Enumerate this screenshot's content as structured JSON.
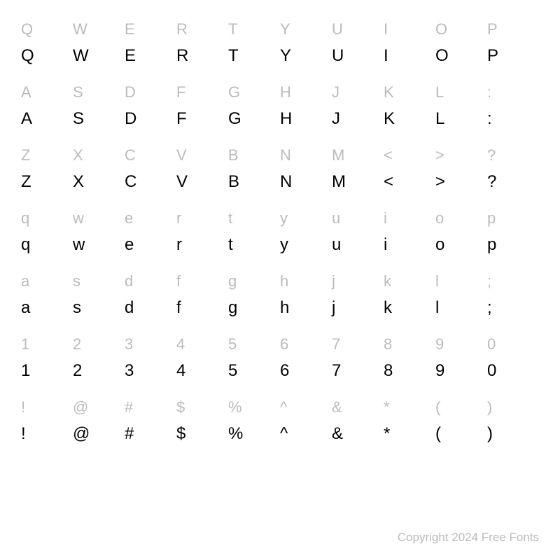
{
  "grid": {
    "type": "table",
    "columns": 10,
    "rows": [
      {
        "labels": [
          "Q",
          "W",
          "E",
          "R",
          "T",
          "Y",
          "U",
          "I",
          "O",
          "P"
        ],
        "specimens": [
          "Q",
          "W",
          "E",
          "R",
          "T",
          "Y",
          "U",
          "I",
          "O",
          "P"
        ]
      },
      {
        "labels": [
          "A",
          "S",
          "D",
          "F",
          "G",
          "H",
          "J",
          "K",
          "L",
          ":"
        ],
        "specimens": [
          "A",
          "S",
          "D",
          "F",
          "G",
          "H",
          "J",
          "K",
          "L",
          ":"
        ]
      },
      {
        "labels": [
          "Z",
          "X",
          "C",
          "V",
          "B",
          "N",
          "M",
          "<",
          ">",
          "?"
        ],
        "specimens": [
          "Z",
          "X",
          "C",
          "V",
          "B",
          "N",
          "M",
          "<",
          ">",
          "?"
        ]
      },
      {
        "labels": [
          "q",
          "w",
          "e",
          "r",
          "t",
          "y",
          "u",
          "i",
          "o",
          "p"
        ],
        "specimens": [
          "q",
          "w",
          "e",
          "r",
          "t",
          "y",
          "u",
          "i",
          "o",
          "p"
        ]
      },
      {
        "labels": [
          "a",
          "s",
          "d",
          "f",
          "g",
          "h",
          "j",
          "k",
          "l",
          ";"
        ],
        "specimens": [
          "a",
          "s",
          "d",
          "f",
          "g",
          "h",
          "j",
          "k",
          "l",
          ";"
        ]
      },
      {
        "labels": [
          "1",
          "2",
          "3",
          "4",
          "5",
          "6",
          "7",
          "8",
          "9",
          "0"
        ],
        "specimens": [
          "1",
          "2",
          "3",
          "4",
          "5",
          "6",
          "7",
          "8",
          "9",
          "0"
        ]
      },
      {
        "labels": [
          "!",
          "@",
          "#",
          "$",
          "%",
          "^",
          "&",
          "*",
          "(",
          ")"
        ],
        "specimens": [
          "!",
          "@",
          "#",
          "$",
          "%",
          "^",
          "&",
          "*",
          "(",
          ")"
        ]
      }
    ],
    "label_color": "#bbbbbb",
    "specimen_color": "#000000",
    "background_color": "#ffffff",
    "label_fontsize": 22,
    "specimen_fontsize": 24
  },
  "footer": {
    "copyright_text": "Copyright 2024 Free Fonts",
    "color": "#bbbbbb",
    "fontsize": 17
  }
}
